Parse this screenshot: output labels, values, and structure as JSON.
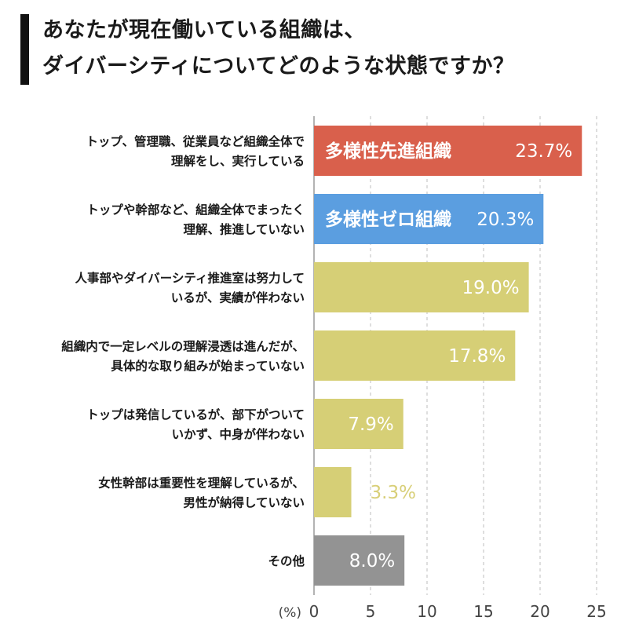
{
  "title": {
    "line1": "あなたが現在働いている組織は、",
    "line2": "ダイバーシティについてどのような状態ですか？"
  },
  "chart_data": {
    "type": "bar",
    "orientation": "horizontal",
    "categories": [
      [
        "トップ、管理職、従業員など組織全体で",
        "理解をし、実行している"
      ],
      [
        "トップや幹部など、組織全体でまったく",
        "理解、推進していない"
      ],
      [
        "人事部やダイバーシティ推進室は努力して",
        "いるが、実績が伴わない"
      ],
      [
        "組織内で一定レベルの理解浸透は進んだが、",
        "具体的な取り組みが始まっていない"
      ],
      [
        "トップは発信しているが、部下がついて",
        "いかず、中身が伴わない"
      ],
      [
        "女性幹部は重要性を理解しているが、",
        "男性が納得していない"
      ],
      [
        "その他"
      ]
    ],
    "values": [
      23.7,
      20.3,
      19.0,
      17.8,
      7.9,
      3.3,
      8.0
    ],
    "value_labels": [
      "23.7%",
      "20.3%",
      "19.0%",
      "17.8%",
      "7.9%",
      "3.3%",
      "8.0%"
    ],
    "bar_text": [
      "多様性先進組織",
      "多様性ゼロ組織",
      "",
      "",
      "",
      "",
      ""
    ],
    "colors": [
      "#d9604c",
      "#5b9ee0",
      "#d6cf76",
      "#d6cf76",
      "#d6cf76",
      "#d6cf76",
      "#939393"
    ],
    "outside_label_color": "#d8cf78",
    "x_ticks": [
      0,
      5,
      10,
      15,
      20,
      25
    ],
    "xlim": [
      0,
      25
    ],
    "x_unit": "(%)",
    "grid": "vertical-dashed"
  }
}
